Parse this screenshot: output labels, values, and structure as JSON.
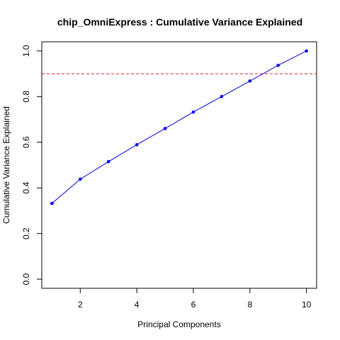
{
  "chart_data": {
    "type": "line",
    "title": "chip_OmniExpress : Cumulative Variance Explained",
    "xlabel": "Principal Components",
    "ylabel": "Cumulative Variance Explained",
    "x": [
      1,
      2,
      3,
      4,
      5,
      6,
      7,
      8,
      9,
      10
    ],
    "series": [
      {
        "values": [
          0.332,
          0.438,
          0.515,
          0.589,
          0.66,
          0.732,
          0.8,
          0.868,
          0.937,
          1.0
        ]
      }
    ],
    "xlim": [
      0.64,
      10.36
    ],
    "ylim": [
      -0.04,
      1.04
    ],
    "xticks": [
      2,
      4,
      6,
      8,
      10
    ],
    "xtick_labels": [
      "2",
      "4",
      "6",
      "8",
      "10"
    ],
    "yticks": [
      0.0,
      0.2,
      0.4,
      0.6,
      0.8,
      1.0
    ],
    "ytick_labels": [
      "0.0",
      "0.2",
      "0.4",
      "0.6",
      "0.8",
      "1.0"
    ],
    "reference_line": {
      "y": 0.9,
      "style": "dashed",
      "color": "#dd2222"
    },
    "line_color": "#0000cc",
    "point_color": "#0000ff",
    "grid": false,
    "legend": "none"
  }
}
